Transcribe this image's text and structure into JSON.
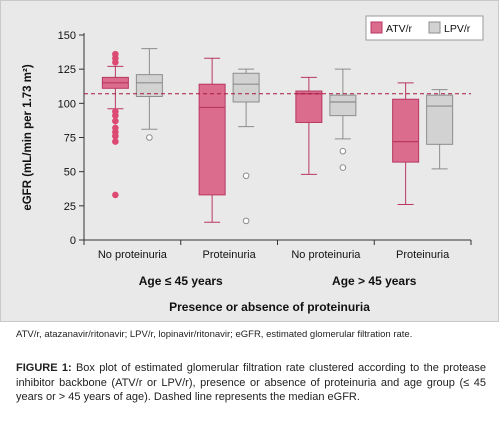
{
  "chart_data": {
    "type": "box",
    "ylabel": "eGFR (mL/min per 1.73 m²)",
    "ylim": [
      0,
      150
    ],
    "yticks": [
      0,
      25,
      50,
      75,
      100,
      125,
      150
    ],
    "median_line": 107,
    "xlabel": "Presence or absence of proteinuria",
    "groups": [
      {
        "label": "Age ≤ 45 years",
        "subcategories": [
          "No proteinuria",
          "Proteinuria"
        ]
      },
      {
        "label": "Age > 45 years",
        "subcategories": [
          "No proteinuria",
          "Proteinuria"
        ]
      }
    ],
    "series": [
      {
        "name": "ATV/r",
        "color": "#dc6c8d",
        "boxes": [
          {
            "category": "No proteinuria",
            "age": "≤ 45",
            "whisker_low": 96,
            "q1": 111,
            "median": 115,
            "q3": 119,
            "whisker_high": 127,
            "outliers_filled": [
              33,
              72,
              76,
              79,
              82,
              87,
              91,
              94,
              130,
              133,
              136
            ]
          },
          {
            "category": "Proteinuria",
            "age": "≤ 45",
            "whisker_low": 13,
            "q1": 33,
            "median": 97,
            "q3": 114,
            "whisker_high": 133,
            "outliers_filled": []
          },
          {
            "category": "No proteinuria",
            "age": "> 45",
            "whisker_low": 48,
            "q1": 86,
            "median": 107,
            "q3": 109,
            "whisker_high": 119,
            "outliers_filled": []
          },
          {
            "category": "Proteinuria",
            "age": "> 45",
            "whisker_low": 26,
            "q1": 57,
            "median": 72,
            "q3": 103,
            "whisker_high": 115,
            "outliers_filled": []
          }
        ]
      },
      {
        "name": "LPV/r",
        "color": "#d2d2d2",
        "boxes": [
          {
            "category": "No proteinuria",
            "age": "≤ 45",
            "whisker_low": 81,
            "q1": 105,
            "median": 115,
            "q3": 121,
            "whisker_high": 140,
            "outliers_open": [
              75
            ]
          },
          {
            "category": "Proteinuria",
            "age": "≤ 45",
            "whisker_low": 83,
            "q1": 101,
            "median": 114,
            "q3": 122,
            "whisker_high": 125,
            "outliers_open": [
              14,
              47
            ]
          },
          {
            "category": "No proteinuria",
            "age": "> 45",
            "whisker_low": 74,
            "q1": 91,
            "median": 101,
            "q3": 106,
            "whisker_high": 125,
            "outliers_open": [
              53,
              65
            ]
          },
          {
            "category": "Proteinuria",
            "age": "> 45",
            "whisker_low": 52,
            "q1": 70,
            "median": 98,
            "q3": 106,
            "whisker_high": 110,
            "outliers_open": []
          }
        ]
      }
    ],
    "legend": {
      "placement": "top-right",
      "items": [
        "ATV/r",
        "LPV/r"
      ]
    }
  },
  "footnote": "ATV/r, atazanavir/ritonavir; LPV/r, lopinavir/ritonavir; eGFR, estimated glomerular filtration rate.",
  "caption": {
    "label": "FIGURE 1:",
    "text": " Box plot of estimated glomerular filtration rate clustered according to the protease inhibitor backbone (ATV/r or LPV/r), presence or absence of proteinuria and age group (≤ 45 years or > 45 years of age). Dashed line represents the median eGFR."
  }
}
